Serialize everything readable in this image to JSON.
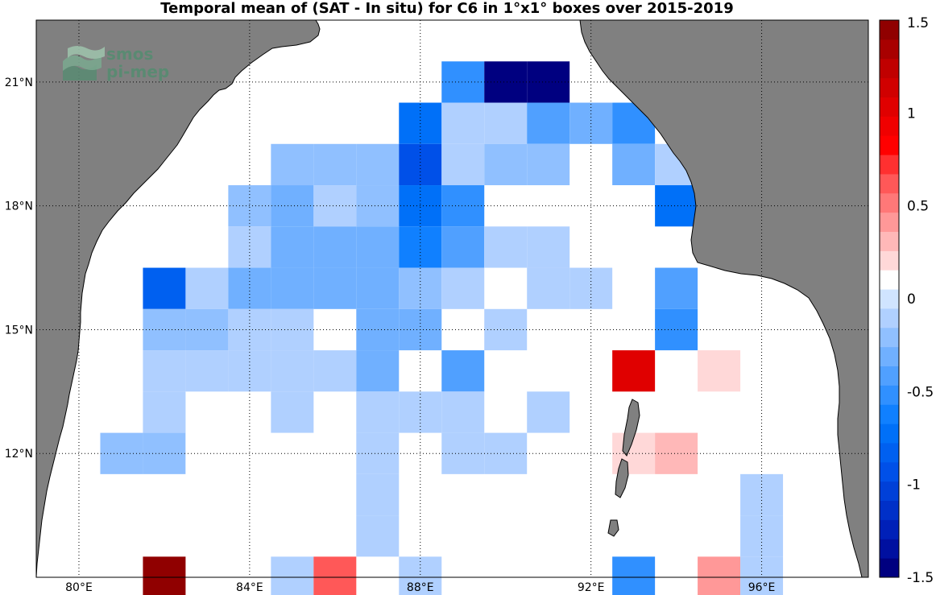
{
  "title": "Temporal mean of (SAT - In situ) for C6 in 1°x1° boxes over 2015-2019",
  "logo": {
    "line1": "smos",
    "line2": "pi-mep"
  },
  "colors": {
    "land": "#808080",
    "ocean": "#ffffff",
    "frame": "#000000"
  },
  "map_data": {
    "lon_range": [
      79,
      98.5
    ],
    "lat_range": [
      9,
      22.5
    ],
    "lon_ticks": [
      {
        "value": 80,
        "label": "80°E"
      },
      {
        "value": 84,
        "label": "84°E"
      },
      {
        "value": 88,
        "label": "88°E"
      },
      {
        "value": 92,
        "label": "92°E"
      },
      {
        "value": 96,
        "label": "96°E"
      }
    ],
    "lat_ticks": [
      {
        "value": 12,
        "label": "12°N"
      },
      {
        "value": 15,
        "label": "15°N"
      },
      {
        "value": 18,
        "label": "18°N"
      },
      {
        "value": 21,
        "label": "21°N"
      }
    ],
    "cells": [
      {
        "lon": 89,
        "lat": 21,
        "v": -0.55
      },
      {
        "lon": 90,
        "lat": 21,
        "v": -1.5
      },
      {
        "lon": 91,
        "lat": 21,
        "v": -1.5
      },
      {
        "lon": 88,
        "lat": 20,
        "v": -0.75
      },
      {
        "lon": 89,
        "lat": 20,
        "v": -0.1
      },
      {
        "lon": 90,
        "lat": 20,
        "v": -0.1
      },
      {
        "lon": 91,
        "lat": 20,
        "v": -0.4
      },
      {
        "lon": 92,
        "lat": 20,
        "v": -0.3
      },
      {
        "lon": 93,
        "lat": 20,
        "v": -0.5
      },
      {
        "lon": 85,
        "lat": 19,
        "v": -0.2
      },
      {
        "lon": 86,
        "lat": 19,
        "v": -0.2
      },
      {
        "lon": 87,
        "lat": 19,
        "v": -0.2
      },
      {
        "lon": 88,
        "lat": 19,
        "v": -0.9
      },
      {
        "lon": 89,
        "lat": 19,
        "v": -0.1
      },
      {
        "lon": 90,
        "lat": 19,
        "v": -0.2
      },
      {
        "lon": 91,
        "lat": 19,
        "v": -0.2
      },
      {
        "lon": 93,
        "lat": 19,
        "v": -0.35
      },
      {
        "lon": 94,
        "lat": 19,
        "v": -0.1
      },
      {
        "lon": 84,
        "lat": 18,
        "v": -0.2
      },
      {
        "lon": 85,
        "lat": 18,
        "v": -0.35
      },
      {
        "lon": 86,
        "lat": 18,
        "v": -0.1
      },
      {
        "lon": 87,
        "lat": 18,
        "v": -0.2
      },
      {
        "lon": 88,
        "lat": 18,
        "v": -0.7
      },
      {
        "lon": 89,
        "lat": 18,
        "v": -0.5
      },
      {
        "lon": 93,
        "lat": 18,
        "v": 0.1
      },
      {
        "lon": 94,
        "lat": 18,
        "v": -0.75
      },
      {
        "lon": 84,
        "lat": 17,
        "v": -0.1
      },
      {
        "lon": 85,
        "lat": 17,
        "v": -0.35
      },
      {
        "lon": 86,
        "lat": 17,
        "v": -0.3
      },
      {
        "lon": 87,
        "lat": 17,
        "v": -0.3
      },
      {
        "lon": 88,
        "lat": 17,
        "v": -0.6
      },
      {
        "lon": 89,
        "lat": 17,
        "v": -0.4
      },
      {
        "lon": 90,
        "lat": 17,
        "v": -0.1
      },
      {
        "lon": 91,
        "lat": 17,
        "v": -0.1
      },
      {
        "lon": 82,
        "lat": 16,
        "v": -0.8
      },
      {
        "lon": 83,
        "lat": 16,
        "v": -0.1
      },
      {
        "lon": 84,
        "lat": 16,
        "v": -0.35
      },
      {
        "lon": 85,
        "lat": 16,
        "v": -0.35
      },
      {
        "lon": 86,
        "lat": 16,
        "v": -0.3
      },
      {
        "lon": 87,
        "lat": 16,
        "v": -0.3
      },
      {
        "lon": 88,
        "lat": 16,
        "v": -0.2
      },
      {
        "lon": 89,
        "lat": 16,
        "v": -0.1
      },
      {
        "lon": 91,
        "lat": 16,
        "v": -0.1
      },
      {
        "lon": 92,
        "lat": 16,
        "v": -0.1
      },
      {
        "lon": 94,
        "lat": 16,
        "v": -0.4
      },
      {
        "lon": 82,
        "lat": 15,
        "v": -0.2
      },
      {
        "lon": 83,
        "lat": 15,
        "v": -0.2
      },
      {
        "lon": 84,
        "lat": 15,
        "v": -0.1
      },
      {
        "lon": 85,
        "lat": 15,
        "v": -0.1
      },
      {
        "lon": 87,
        "lat": 15,
        "v": -0.3
      },
      {
        "lon": 88,
        "lat": 15,
        "v": -0.3
      },
      {
        "lon": 90,
        "lat": 15,
        "v": -0.1
      },
      {
        "lon": 94,
        "lat": 15,
        "v": -0.55
      },
      {
        "lon": 82,
        "lat": 14,
        "v": -0.1
      },
      {
        "lon": 83,
        "lat": 14,
        "v": -0.1
      },
      {
        "lon": 84,
        "lat": 14,
        "v": -0.1
      },
      {
        "lon": 85,
        "lat": 14,
        "v": -0.1
      },
      {
        "lon": 86,
        "lat": 14,
        "v": -0.1
      },
      {
        "lon": 87,
        "lat": 14,
        "v": -0.3
      },
      {
        "lon": 89,
        "lat": 14,
        "v": -0.4
      },
      {
        "lon": 93,
        "lat": 14,
        "v": 1.0
      },
      {
        "lon": 95,
        "lat": 14,
        "v": 0.25
      },
      {
        "lon": 82,
        "lat": 13,
        "v": -0.1
      },
      {
        "lon": 85,
        "lat": 13,
        "v": -0.1
      },
      {
        "lon": 87,
        "lat": 13,
        "v": -0.1
      },
      {
        "lon": 88,
        "lat": 13,
        "v": -0.1
      },
      {
        "lon": 89,
        "lat": 13,
        "v": -0.1
      },
      {
        "lon": 91,
        "lat": 13,
        "v": -0.1
      },
      {
        "lon": 81,
        "lat": 12,
        "v": -0.2
      },
      {
        "lon": 82,
        "lat": 12,
        "v": -0.2
      },
      {
        "lon": 83,
        "lat": 12,
        "v": 0.1
      },
      {
        "lon": 87,
        "lat": 12,
        "v": -0.1
      },
      {
        "lon": 89,
        "lat": 12,
        "v": -0.1
      },
      {
        "lon": 90,
        "lat": 12,
        "v": -0.1
      },
      {
        "lon": 93,
        "lat": 12,
        "v": 0.25
      },
      {
        "lon": 94,
        "lat": 12,
        "v": 0.35
      },
      {
        "lon": 87,
        "lat": 11,
        "v": -0.1
      },
      {
        "lon": 91,
        "lat": 11,
        "v": 0.1
      },
      {
        "lon": 96,
        "lat": 11,
        "v": -0.1
      },
      {
        "lon": 87,
        "lat": 10,
        "v": -0.1
      },
      {
        "lon": 96,
        "lat": 10,
        "v": -0.1
      },
      {
        "lon": 82,
        "lat": 9,
        "v": 1.4
      },
      {
        "lon": 85,
        "lat": 9,
        "v": -0.1
      },
      {
        "lon": 86,
        "lat": 9,
        "v": 0.6
      },
      {
        "lon": 88,
        "lat": 9,
        "v": -0.1
      },
      {
        "lon": 91,
        "lat": 9,
        "v": 0.1
      },
      {
        "lon": 93,
        "lat": 9,
        "v": -0.5
      },
      {
        "lon": 95,
        "lat": 9,
        "v": 0.4
      },
      {
        "lon": 96,
        "lat": 9,
        "v": -0.1
      }
    ]
  },
  "colorbar": {
    "range": [
      -1.5,
      1.5
    ],
    "levels": 29,
    "colors": [
      "#000080",
      "#0010a0",
      "#0020b8",
      "#0030c8",
      "#0040d8",
      "#0050e8",
      "#0060f0",
      "#0070f8",
      "#1080ff",
      "#3090ff",
      "#50a0ff",
      "#70b0ff",
      "#90c0ff",
      "#b0d0ff",
      "#d0e4ff",
      "#ffffff",
      "#ffd8d8",
      "#ffb8b8",
      "#ff9898",
      "#ff7878",
      "#ff5858",
      "#ff3030",
      "#ff0000",
      "#f00000",
      "#e00000",
      "#d00000",
      "#c00000",
      "#a80000",
      "#900000"
    ],
    "ticks": [
      {
        "value": 1.5,
        "label": "1.5"
      },
      {
        "value": 1,
        "label": "1"
      },
      {
        "value": 0.5,
        "label": "0.5"
      },
      {
        "value": 0,
        "label": "0"
      },
      {
        "value": -0.5,
        "label": "-0.5"
      },
      {
        "value": -1,
        "label": "-1"
      },
      {
        "value": -1.5,
        "label": "-1.5"
      }
    ]
  }
}
